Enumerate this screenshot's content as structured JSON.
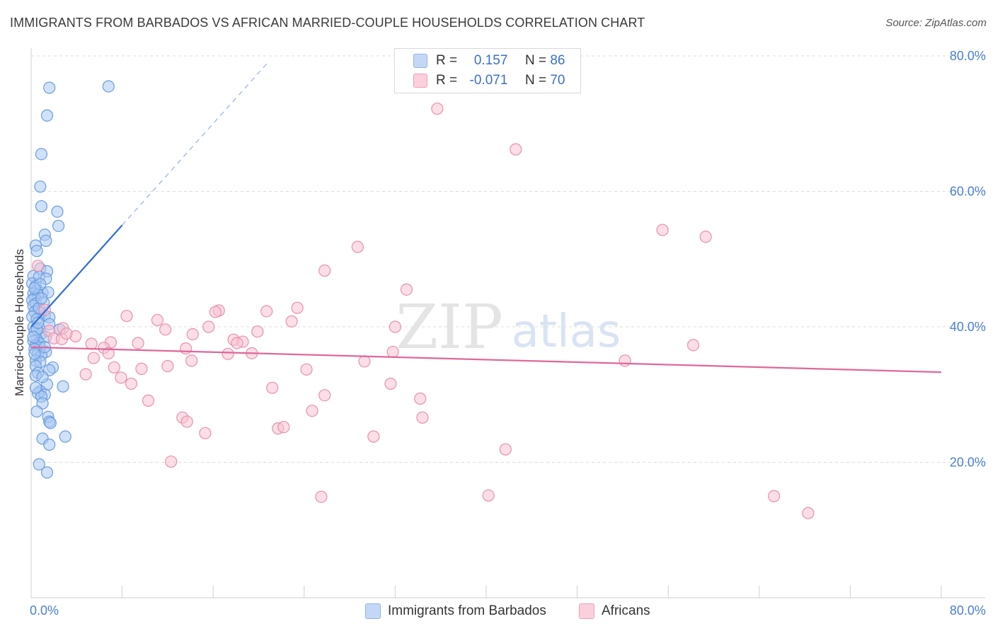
{
  "title": "IMMIGRANTS FROM BARBADOS VS AFRICAN MARRIED-COUPLE HOUSEHOLDS CORRELATION CHART",
  "source": "Source: ZipAtlas.com",
  "watermark": {
    "zip": "ZIP",
    "atlas": "atlas"
  },
  "legend": {
    "series1": {
      "r_label": "R =",
      "r_value": "0.157",
      "n_label": "N =",
      "n_value": "86"
    },
    "series2": {
      "r_label": "R =",
      "r_value": "-0.071",
      "n_label": "N =",
      "n_value": "70"
    }
  },
  "colors": {
    "blue_fill": "#aac8f2",
    "blue_stroke": "#6a9de0",
    "blue_line": "#2f6fd6",
    "pink_fill": "#f7c2d2",
    "pink_stroke": "#ea8fac",
    "pink_line": "#e0679a",
    "grid": "#dcdcdc",
    "tick_text": "#4a7fd0"
  },
  "chart_data": {
    "type": "scatter",
    "title": "IMMIGRANTS FROM BARBADOS VS AFRICAN MARRIED-COUPLE HOUSEHOLDS CORRELATION CHART",
    "xlabel": "",
    "ylabel": "Married-couple Households",
    "xlim": [
      0,
      80
    ],
    "ylim": [
      0,
      80
    ],
    "x_tick_labels": [
      "0.0%",
      "80.0%"
    ],
    "y_ticks": [
      20,
      40,
      60,
      80
    ],
    "y_tick_labels": [
      "20.0%",
      "40.0%",
      "60.0%",
      "80.0%"
    ],
    "series": [
      {
        "name": "Immigrants from Barbados",
        "color": "blue",
        "trend": {
          "x0": 0,
          "y0": 40.0,
          "x1": 8.0,
          "y1": 55.0,
          "dash_x1": 20.8,
          "dash_y1": 79.0
        },
        "points": [
          [
            1.6,
            75.3
          ],
          [
            6.8,
            75.5
          ],
          [
            1.4,
            71.2
          ],
          [
            0.9,
            65.5
          ],
          [
            0.8,
            60.7
          ],
          [
            0.9,
            57.8
          ],
          [
            2.3,
            57.0
          ],
          [
            2.4,
            54.9
          ],
          [
            1.2,
            53.6
          ],
          [
            1.3,
            52.7
          ],
          [
            0.4,
            52.0
          ],
          [
            0.5,
            51.2
          ],
          [
            0.8,
            48.6
          ],
          [
            1.4,
            48.2
          ],
          [
            0.2,
            47.5
          ],
          [
            0.7,
            47.4
          ],
          [
            1.3,
            47.1
          ],
          [
            0.1,
            46.4
          ],
          [
            0.4,
            46.0
          ],
          [
            0.5,
            45.4
          ],
          [
            0.2,
            44.9
          ],
          [
            1.0,
            45.0
          ],
          [
            1.5,
            45.1
          ],
          [
            0.6,
            44.7
          ],
          [
            0.3,
            44.3
          ],
          [
            0.1,
            43.9
          ],
          [
            0.4,
            43.4
          ],
          [
            0.2,
            43.1
          ],
          [
            0.6,
            42.6
          ],
          [
            0.3,
            42.2
          ],
          [
            0.9,
            42.0
          ],
          [
            1.2,
            41.7
          ],
          [
            0.1,
            41.5
          ],
          [
            1.6,
            41.4
          ],
          [
            0.5,
            41.1
          ],
          [
            1.6,
            40.4
          ],
          [
            0.2,
            40.0
          ],
          [
            0.7,
            39.8
          ],
          [
            2.5,
            39.6
          ],
          [
            0.3,
            39.3
          ],
          [
            0.9,
            39.0
          ],
          [
            1.3,
            38.5
          ],
          [
            0.5,
            38.1
          ],
          [
            0.2,
            37.9
          ],
          [
            0.7,
            37.6
          ],
          [
            0.4,
            37.3
          ],
          [
            0.8,
            36.9
          ],
          [
            0.3,
            36.7
          ],
          [
            1.3,
            36.3
          ],
          [
            0.6,
            36.1
          ],
          [
            0.9,
            35.8
          ],
          [
            0.4,
            35.0
          ],
          [
            0.8,
            34.8
          ],
          [
            0.4,
            34.2
          ],
          [
            1.9,
            34.0
          ],
          [
            1.6,
            33.6
          ],
          [
            0.6,
            33.2
          ],
          [
            0.4,
            32.8
          ],
          [
            1.4,
            31.5
          ],
          [
            2.8,
            31.2
          ],
          [
            0.8,
            30.5
          ],
          [
            0.6,
            30.2
          ],
          [
            1.2,
            30.0
          ],
          [
            0.9,
            29.7
          ],
          [
            1.0,
            28.7
          ],
          [
            1.5,
            26.7
          ],
          [
            1.6,
            26.0
          ],
          [
            1.7,
            25.8
          ],
          [
            1.0,
            23.5
          ],
          [
            3.0,
            23.8
          ],
          [
            1.6,
            22.6
          ],
          [
            0.7,
            19.7
          ],
          [
            1.4,
            18.5
          ],
          [
            0.3,
            36.0
          ],
          [
            0.5,
            39.6
          ],
          [
            0.7,
            42.8
          ],
          [
            1.1,
            43.6
          ],
          [
            0.2,
            38.5
          ],
          [
            0.9,
            44.2
          ],
          [
            0.4,
            31.0
          ],
          [
            1.0,
            32.6
          ],
          [
            0.5,
            27.5
          ],
          [
            0.8,
            46.3
          ],
          [
            0.3,
            45.7
          ],
          [
            1.2,
            37.0
          ],
          [
            0.6,
            40.6
          ]
        ]
      },
      {
        "name": "Africans",
        "color": "pink",
        "trend": {
          "x0": 0,
          "y0": 37.0,
          "x1": 80,
          "y1": 33.3
        },
        "points": [
          [
            35.7,
            72.2
          ],
          [
            42.6,
            66.2
          ],
          [
            55.5,
            54.3
          ],
          [
            59.3,
            53.3
          ],
          [
            28.7,
            51.8
          ],
          [
            25.8,
            48.3
          ],
          [
            33.0,
            45.5
          ],
          [
            1.2,
            42.5
          ],
          [
            16.5,
            42.4
          ],
          [
            16.2,
            42.2
          ],
          [
            23.4,
            42.8
          ],
          [
            20.7,
            42.3
          ],
          [
            8.4,
            41.6
          ],
          [
            11.1,
            41.0
          ],
          [
            22.9,
            40.8
          ],
          [
            15.6,
            40.0
          ],
          [
            11.8,
            39.6
          ],
          [
            32.0,
            40.0
          ],
          [
            19.9,
            39.3
          ],
          [
            1.6,
            39.4
          ],
          [
            2.8,
            39.8
          ],
          [
            14.2,
            38.9
          ],
          [
            3.9,
            38.6
          ],
          [
            2.0,
            38.3
          ],
          [
            2.7,
            38.2
          ],
          [
            17.8,
            38.1
          ],
          [
            18.6,
            37.8
          ],
          [
            7.0,
            37.7
          ],
          [
            9.4,
            37.6
          ],
          [
            18.1,
            37.6
          ],
          [
            5.3,
            37.5
          ],
          [
            6.4,
            36.9
          ],
          [
            58.2,
            37.3
          ],
          [
            13.6,
            36.8
          ],
          [
            6.8,
            36.1
          ],
          [
            19.4,
            36.1
          ],
          [
            17.3,
            36.0
          ],
          [
            31.8,
            36.3
          ],
          [
            5.5,
            35.4
          ],
          [
            14.1,
            35.0
          ],
          [
            29.3,
            34.9
          ],
          [
            52.2,
            35.0
          ],
          [
            7.3,
            34.0
          ],
          [
            9.7,
            33.8
          ],
          [
            12.0,
            34.2
          ],
          [
            24.2,
            33.7
          ],
          [
            4.8,
            33.0
          ],
          [
            7.9,
            32.5
          ],
          [
            8.8,
            31.6
          ],
          [
            21.2,
            31.0
          ],
          [
            31.6,
            31.6
          ],
          [
            25.8,
            29.9
          ],
          [
            10.3,
            29.1
          ],
          [
            34.2,
            29.4
          ],
          [
            24.7,
            27.6
          ],
          [
            34.4,
            26.6
          ],
          [
            13.3,
            26.6
          ],
          [
            13.7,
            26.0
          ],
          [
            21.7,
            25.0
          ],
          [
            22.2,
            25.2
          ],
          [
            15.3,
            24.3
          ],
          [
            30.1,
            23.8
          ],
          [
            41.7,
            21.9
          ],
          [
            12.3,
            20.1
          ],
          [
            40.2,
            15.1
          ],
          [
            65.3,
            15.0
          ],
          [
            25.5,
            14.9
          ],
          [
            68.3,
            12.5
          ],
          [
            0.6,
            49.0
          ],
          [
            3.1,
            39.0
          ]
        ]
      }
    ]
  },
  "bottom_legend": {
    "series1": "Immigrants from Barbados",
    "series2": "Africans"
  }
}
